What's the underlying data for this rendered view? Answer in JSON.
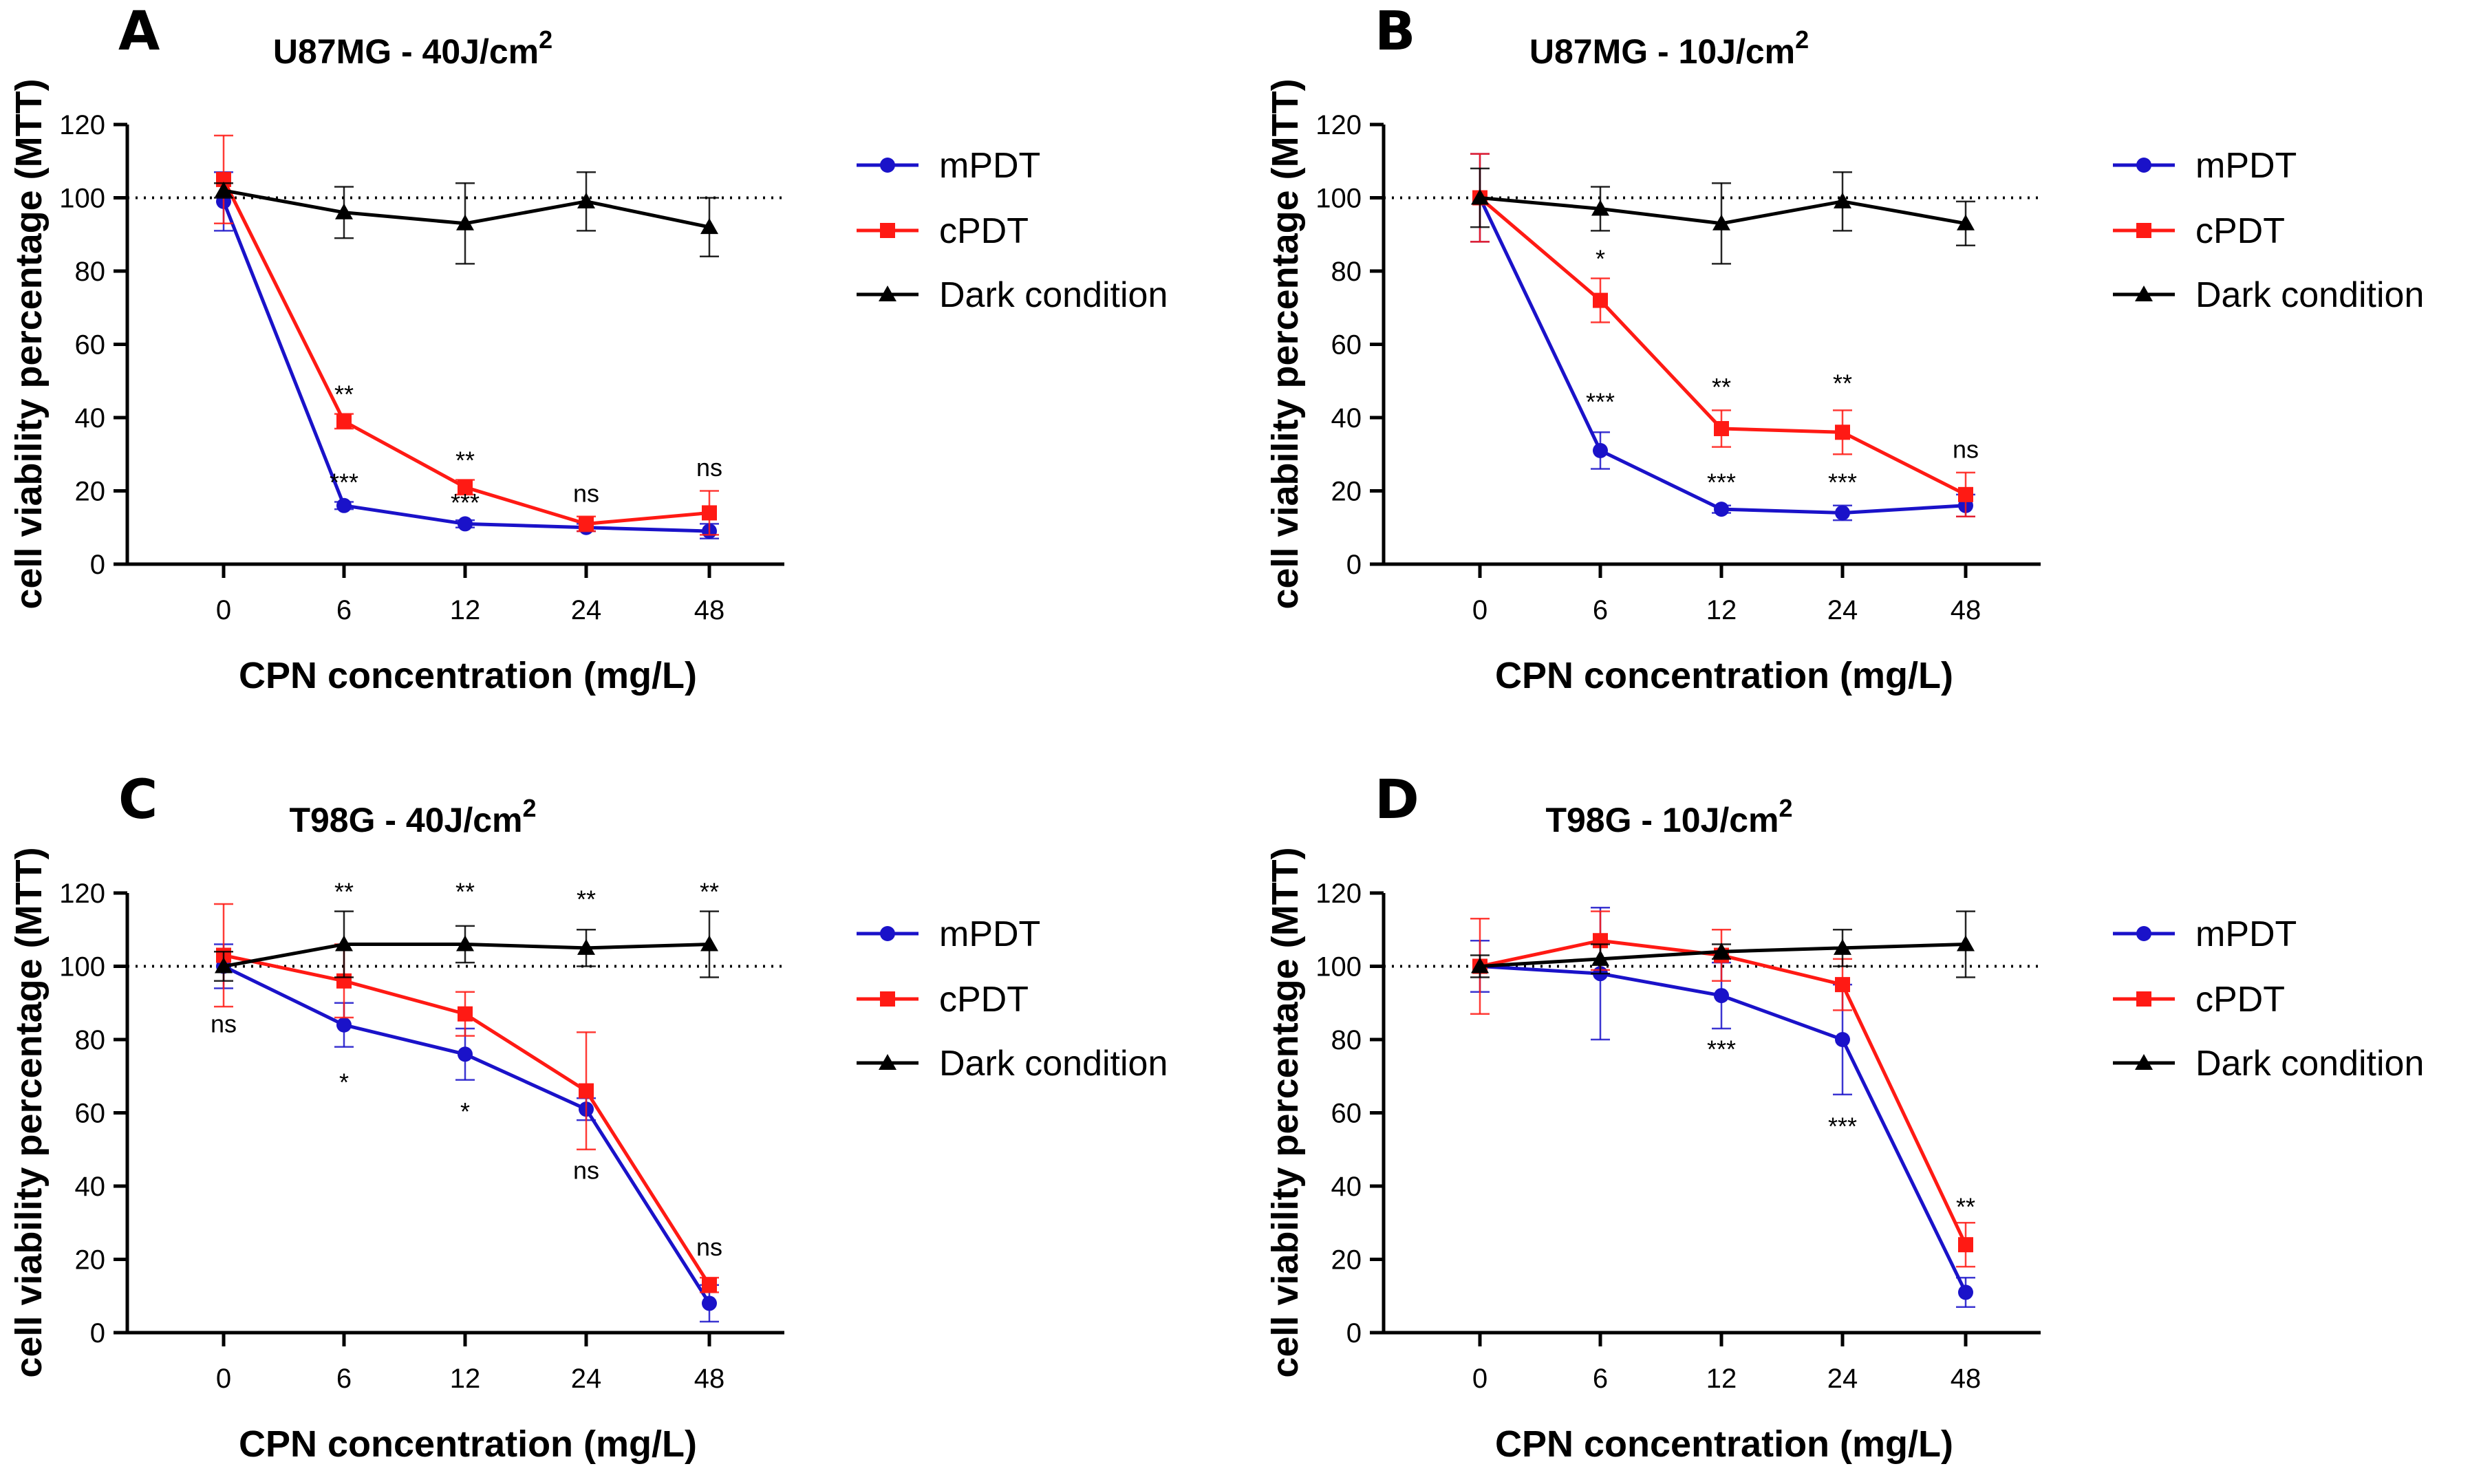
{
  "series_styles": [
    {
      "name": "mPDT",
      "color": "#1a12c9",
      "marker": "circle"
    },
    {
      "name": "cPDT",
      "color": "#ff1a14",
      "marker": "square"
    },
    {
      "name": "Dark condition",
      "color": "#000000",
      "marker": "triangle"
    }
  ],
  "chart_data": [
    {
      "panel": "A",
      "type": "line",
      "title": "U87MG - 40J/cm",
      "title_sup": "2",
      "xlabel": "CPN concentration (mg/L)",
      "ylabel": "cell viability percentage (MTT)",
      "categories": [
        "0",
        "6",
        "12",
        "24",
        "48"
      ],
      "ylim": [
        0,
        120
      ],
      "yticks": [
        0,
        20,
        40,
        60,
        80,
        100,
        120
      ],
      "reference_line": 100,
      "legend": [
        "mPDT",
        "cPDT",
        "Dark condition"
      ],
      "series": [
        {
          "name": "mPDT",
          "values": [
            99,
            16,
            11,
            10,
            9
          ],
          "errors": [
            8,
            1,
            1,
            1,
            2
          ]
        },
        {
          "name": "cPDT",
          "values": [
            105,
            39,
            21,
            11,
            14
          ],
          "errors": [
            12,
            2,
            2,
            2,
            6
          ]
        },
        {
          "name": "Dark condition",
          "values": [
            102,
            96,
            93,
            99,
            92
          ],
          "errors": [
            2,
            7,
            11,
            8,
            8
          ]
        }
      ],
      "annotations": [
        {
          "category": "6",
          "y": 44,
          "text": "**"
        },
        {
          "category": "6",
          "y": 20,
          "text": "***"
        },
        {
          "category": "12",
          "y": 26,
          "text": "**"
        },
        {
          "category": "12",
          "y": 14.5,
          "text": "***"
        },
        {
          "category": "24",
          "y": 17,
          "text": "ns"
        },
        {
          "category": "48",
          "y": 24,
          "text": "ns"
        }
      ]
    },
    {
      "panel": "B",
      "type": "line",
      "title": "U87MG - 10J/cm",
      "title_sup": "2",
      "xlabel": "CPN concentration (mg/L)",
      "ylabel": "cell viability percentage (MTT)",
      "categories": [
        "0",
        "6",
        "12",
        "24",
        "48"
      ],
      "ylim": [
        0,
        120
      ],
      "yticks": [
        0,
        20,
        40,
        60,
        80,
        100,
        120
      ],
      "reference_line": 100,
      "legend": [
        "mPDT",
        "cPDT",
        "Dark condition"
      ],
      "series": [
        {
          "name": "mPDT",
          "values": [
            100,
            31,
            15,
            14,
            16
          ],
          "errors": [
            12,
            5,
            1,
            2,
            3
          ]
        },
        {
          "name": "cPDT",
          "values": [
            100,
            72,
            37,
            36,
            19
          ],
          "errors": [
            12,
            6,
            5,
            6,
            6
          ]
        },
        {
          "name": "Dark condition",
          "values": [
            100,
            97,
            93,
            99,
            93
          ],
          "errors": [
            8,
            6,
            11,
            8,
            6
          ]
        }
      ],
      "annotations": [
        {
          "category": "6",
          "y": 81,
          "text": "*"
        },
        {
          "category": "6",
          "y": 42,
          "text": "***"
        },
        {
          "category": "12",
          "y": 46,
          "text": "**"
        },
        {
          "category": "12",
          "y": 20,
          "text": "***"
        },
        {
          "category": "24",
          "y": 47,
          "text": "**"
        },
        {
          "category": "24",
          "y": 20,
          "text": "***"
        },
        {
          "category": "48",
          "y": 29,
          "text": "ns"
        }
      ]
    },
    {
      "panel": "C",
      "type": "line",
      "title": "T98G - 40J/cm",
      "title_sup": "2",
      "xlabel": "CPN concentration (mg/L)",
      "ylabel": "cell viability percentage (MTT)",
      "categories": [
        "0",
        "6",
        "12",
        "24",
        "48"
      ],
      "ylim": [
        0,
        120
      ],
      "yticks": [
        0,
        20,
        40,
        60,
        80,
        100,
        120
      ],
      "reference_line": 100,
      "legend": [
        "mPDT",
        "cPDT",
        "Dark condition"
      ],
      "series": [
        {
          "name": "mPDT",
          "values": [
            100,
            84,
            76,
            61,
            8
          ],
          "errors": [
            6,
            6,
            7,
            3,
            5
          ]
        },
        {
          "name": "cPDT",
          "values": [
            103,
            96,
            87,
            66,
            13
          ],
          "errors": [
            14,
            10,
            6,
            16,
            2
          ]
        },
        {
          "name": "Dark condition",
          "values": [
            100,
            106,
            106,
            105,
            106
          ],
          "errors": [
            4,
            9,
            5,
            5,
            9
          ]
        }
      ],
      "annotations": [
        {
          "category": "0",
          "y": 82,
          "text": "ns"
        },
        {
          "category": "6",
          "y": 118,
          "text": "**"
        },
        {
          "category": "6",
          "y": 66,
          "text": "*"
        },
        {
          "category": "12",
          "y": 118,
          "text": "**"
        },
        {
          "category": "12",
          "y": 58,
          "text": "*"
        },
        {
          "category": "24",
          "y": 116,
          "text": "**"
        },
        {
          "category": "24",
          "y": 42,
          "text": "ns"
        },
        {
          "category": "48",
          "y": 118,
          "text": "**"
        },
        {
          "category": "48",
          "y": 21,
          "text": "ns"
        }
      ]
    },
    {
      "panel": "D",
      "type": "line",
      "title": "T98G - 10J/cm",
      "title_sup": "2",
      "xlabel": "CPN concentration (mg/L)",
      "ylabel": "cell viability percentage (MTT)",
      "categories": [
        "0",
        "6",
        "12",
        "24",
        "48"
      ],
      "ylim": [
        0,
        120
      ],
      "yticks": [
        0,
        20,
        40,
        60,
        80,
        100,
        120
      ],
      "reference_line": 100,
      "legend": [
        "mPDT",
        "cPDT",
        "Dark condition"
      ],
      "series": [
        {
          "name": "mPDT",
          "values": [
            100,
            98,
            92,
            80,
            11
          ],
          "errors": [
            7,
            18,
            9,
            15,
            4
          ]
        },
        {
          "name": "cPDT",
          "values": [
            100,
            107,
            103,
            95,
            24
          ],
          "errors": [
            13,
            8,
            7,
            7,
            6
          ]
        },
        {
          "name": "Dark condition",
          "values": [
            100,
            102,
            104,
            105,
            106
          ],
          "errors": [
            3,
            4,
            2,
            5,
            9
          ]
        }
      ],
      "annotations": [
        {
          "category": "12",
          "y": 75,
          "text": "***"
        },
        {
          "category": "24",
          "y": 54,
          "text": "***"
        },
        {
          "category": "48",
          "y": 32,
          "text": "**"
        }
      ]
    }
  ]
}
